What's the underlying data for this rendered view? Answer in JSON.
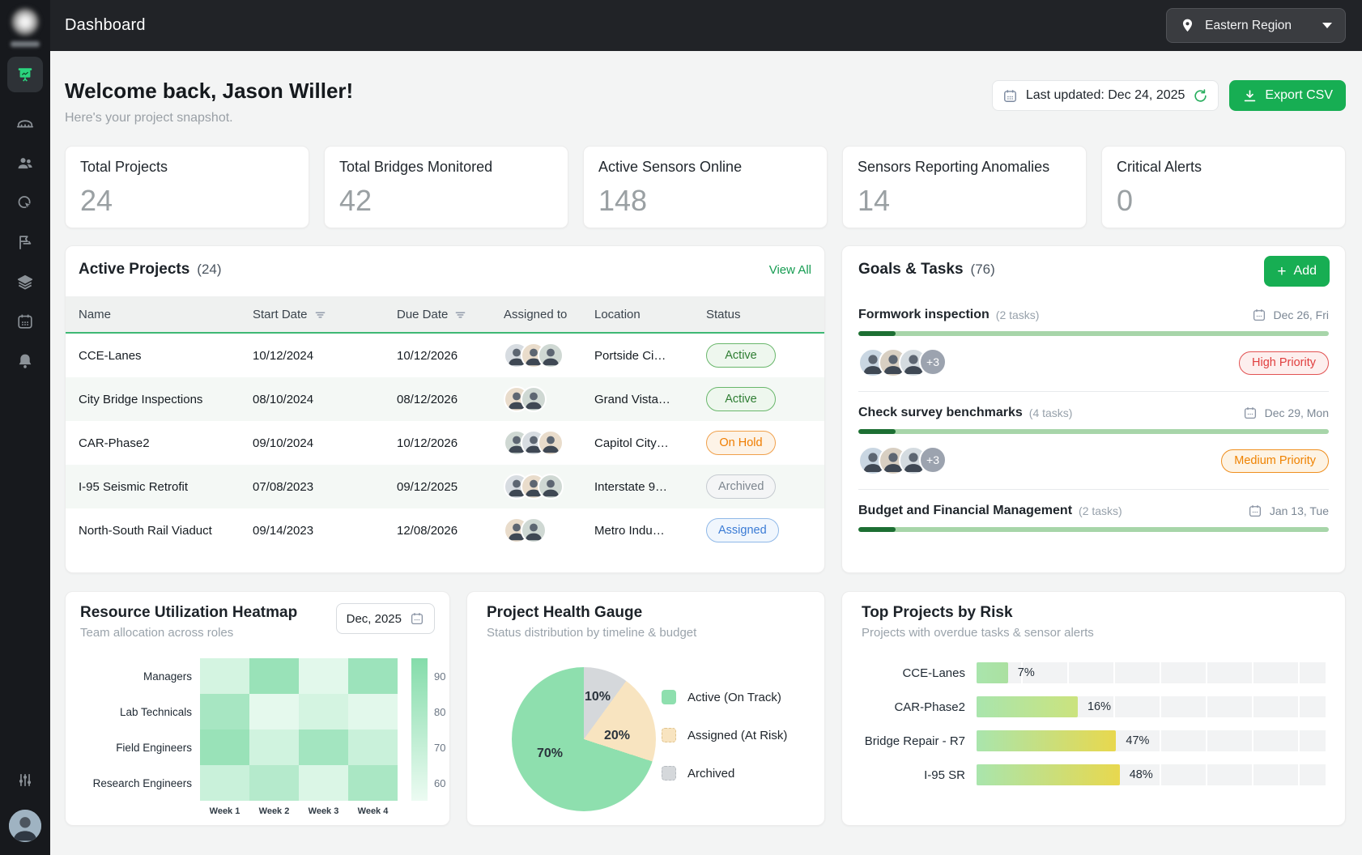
{
  "topbar": {
    "title": "Dashboard",
    "region": "Eastern Region"
  },
  "header": {
    "welcome": "Welcome back, Jason Willer!",
    "subtitle": "Here's your project snapshot.",
    "last_updated": "Last updated: Dec 24, 2025",
    "export_label": "Export CSV"
  },
  "stats": [
    {
      "label": "Total Projects",
      "value": "24"
    },
    {
      "label": "Total Bridges Monitored",
      "value": "42"
    },
    {
      "label": "Active Sensors Online",
      "value": "148"
    },
    {
      "label": "Sensors Reporting Anomalies",
      "value": "14"
    },
    {
      "label": "Critical Alerts",
      "value": "0"
    }
  ],
  "projects": {
    "title": "Active Projects",
    "count": "(24)",
    "view_all": "View All",
    "columns": [
      "Name",
      "Start Date",
      "Due Date",
      "Assigned to",
      "Location",
      "Status"
    ],
    "rows": [
      {
        "name": "CCE-Lanes",
        "start": "10/12/2024",
        "due": "10/12/2026",
        "avatar_count": 3,
        "location": "Portside Ci…",
        "status": "Active"
      },
      {
        "name": "City Bridge Inspections",
        "start": "08/10/2024",
        "due": "08/12/2026",
        "avatar_count": 2,
        "location": "Grand Vista…",
        "status": "Active"
      },
      {
        "name": "CAR-Phase2",
        "start": "09/10/2024",
        "due": "10/12/2026",
        "avatar_count": 3,
        "location": "Capitol City…",
        "status": "On Hold"
      },
      {
        "name": "I-95 Seismic Retrofit",
        "start": "07/08/2023",
        "due": "09/12/2025",
        "avatar_count": 3,
        "location": "Interstate 9…",
        "status": "Archived"
      },
      {
        "name": "North-South Rail Viaduct",
        "start": "09/14/2023",
        "due": "12/08/2026",
        "avatar_count": 2,
        "location": "Metro Indu…",
        "status": "Assigned"
      }
    ]
  },
  "goals": {
    "title": "Goals & Tasks",
    "count": "(76)",
    "add_label": "Add",
    "items": [
      {
        "name": "Formwork inspection",
        "tasks": "(2 tasks)",
        "date": "Dec 26, Fri",
        "progress": 8,
        "avatar_count": 3,
        "extra": "+3",
        "priority": "High Priority"
      },
      {
        "name": "Check survey benchmarks",
        "tasks": "(4 tasks)",
        "date": "Dec 29, Mon",
        "progress": 8,
        "avatar_count": 3,
        "extra": "+3",
        "priority": "Medium Priority"
      },
      {
        "name": "Budget and Financial Management",
        "tasks": "(2 tasks)",
        "date": "Jan 13, Tue",
        "progress": 8
      }
    ]
  },
  "sidebar_icons": [
    "dashboard",
    "bridge",
    "team",
    "target",
    "flag",
    "layers",
    "calendar",
    "notifications",
    "filters",
    "profile"
  ],
  "chart_data": [
    {
      "type": "heatmap",
      "title": "Resource Utilization Heatmap",
      "subtitle": "Team allocation across roles",
      "period": "Dec, 2025",
      "rows": [
        "Managers",
        "Lab Technicals",
        "Field Engineers",
        "Research Engineers"
      ],
      "columns": [
        "Week 1",
        "Week 2",
        "Week 3",
        "Week 4"
      ],
      "values": [
        [
          67,
          84,
          63,
          83
        ],
        [
          80,
          62,
          67,
          63
        ],
        [
          84,
          68,
          81,
          70
        ],
        [
          70,
          76,
          65,
          79
        ]
      ],
      "scale": {
        "min": 60,
        "max": 90,
        "ticks": [
          "90",
          "80",
          "70",
          "60"
        ]
      },
      "color_low": "#ecfbf2",
      "color_high": "#84dcaa"
    },
    {
      "type": "pie",
      "title": "Project Health Gauge",
      "subtitle": "Status distribution by timeline & budget",
      "slices": [
        {
          "label": "Archived",
          "value": 10,
          "pct_label": "10%",
          "color": "#d5d8db"
        },
        {
          "label": "Assigned (At Risk)",
          "value": 20,
          "pct_label": "20%",
          "color": "#f8e4c0"
        },
        {
          "label": "Active (On Track)",
          "value": 70,
          "pct_label": "70%",
          "color": "#8edfae"
        }
      ],
      "start_angle_deg": 0,
      "direction": "clockwise",
      "legend": [
        {
          "label": "Active (On Track)",
          "color": "#8edfae",
          "style": "solid"
        },
        {
          "label": "Assigned (At Risk)",
          "color": "#f8e4c0",
          "style": "dashed"
        },
        {
          "label": "Archived",
          "color": "#d5d8db",
          "style": "dashed"
        }
      ]
    },
    {
      "type": "bar",
      "orientation": "horizontal",
      "title": "Top Projects by Risk",
      "subtitle": "Projects with overdue tasks & sensor alerts",
      "categories": [
        "CCE-Lanes",
        "CAR-Phase2",
        "Bridge Repair - R7",
        "I-95 SR"
      ],
      "values": [
        7,
        16,
        47,
        48
      ],
      "value_labels": [
        "7%",
        "16%",
        "47%",
        "48%"
      ],
      "bar_visual_pct": [
        9,
        29,
        40,
        41
      ]
    }
  ]
}
